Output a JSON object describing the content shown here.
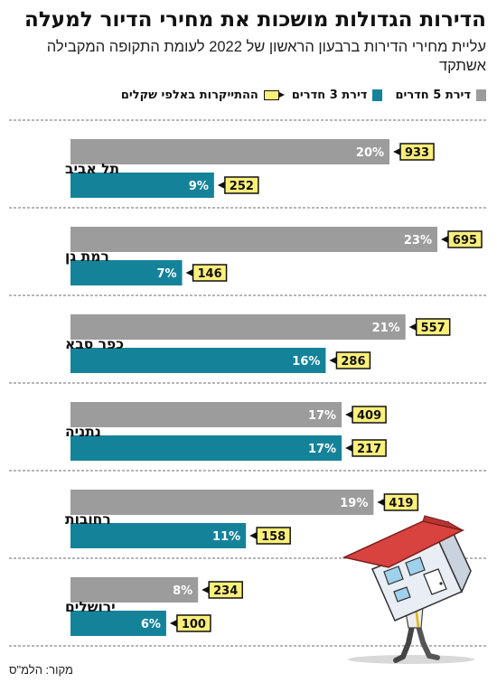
{
  "chart_data": {
    "type": "bar",
    "orientation": "horizontal",
    "title": "הדירות הגדולות מושכות את מחירי הדיור למעלה",
    "subtitle": "עליית מחירי הדירות ברבעון הראשון של 2022 לעומת התקופה המקבילה אשתקד",
    "categories": [
      "תל אביב",
      "רמת גן",
      "כפר סבא",
      "נתניה",
      "רחובות",
      "ירושלים"
    ],
    "series": [
      {
        "name": "דירת 5 חדרים",
        "color": "#9c9c9c",
        "values": [
          20,
          23,
          21,
          17,
          19,
          8
        ],
        "tags": [
          933,
          695,
          557,
          409,
          419,
          234
        ]
      },
      {
        "name": "דירת 3 חדרים",
        "color": "#14839a",
        "values": [
          9,
          7,
          16,
          17,
          11,
          6
        ],
        "tags": [
          252,
          146,
          286,
          217,
          158,
          100
        ]
      }
    ],
    "value_suffix": "%",
    "tag_legend": "ההתייקרות באלפי שקלים",
    "xlim": [
      0,
      23
    ],
    "grid": false
  },
  "source": "מקור: הלמ\"ס",
  "colors": {
    "tag_fill": "#fdf07a",
    "separator": "#8a8a8a",
    "roof": "#d8423f",
    "house_wall": "#e8eef4",
    "house_outline": "#333333"
  },
  "icons": [
    "house-illustration-icon"
  ]
}
